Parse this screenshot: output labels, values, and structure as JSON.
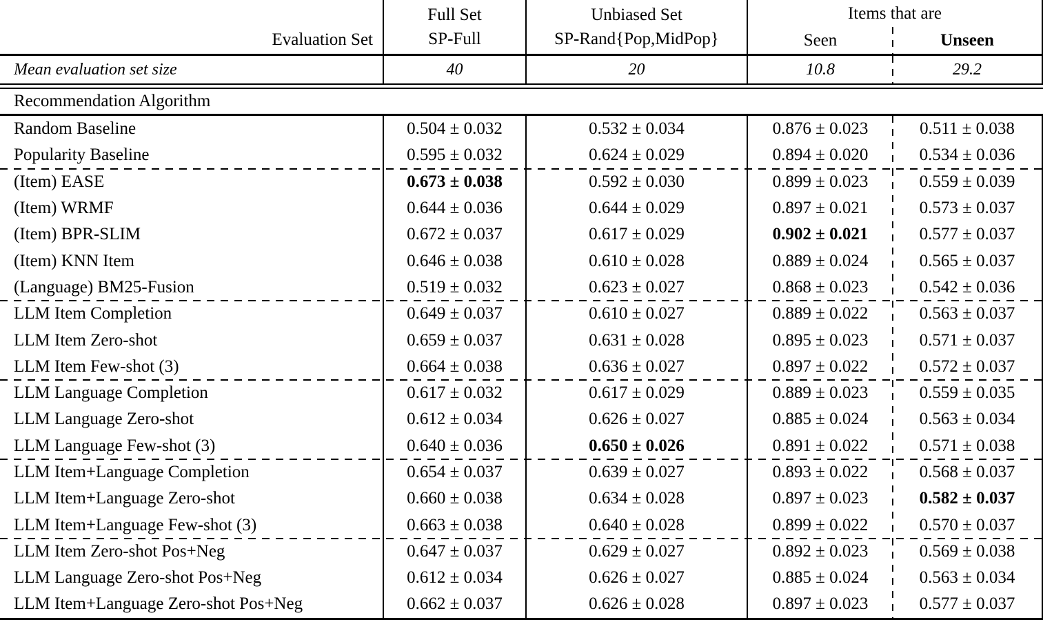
{
  "header": {
    "eval_set_label": "Evaluation Set",
    "full_set_line1": "Full Set",
    "full_set_line2": "SP-Full",
    "unbiased_line1": "Unbiased Set",
    "unbiased_line2": "SP-Rand{Pop,MidPop}",
    "items_group_label": "Items that are",
    "seen_label": "Seen",
    "unseen_label": "Unseen"
  },
  "mean_row": {
    "label": "Mean evaluation set size",
    "values": [
      "40",
      "20",
      "10.8",
      "29.2"
    ]
  },
  "section_label": "Recommendation Algorithm",
  "column_keys": [
    "full_set",
    "unbiased_set",
    "seen",
    "unseen"
  ],
  "rows": [
    {
      "label": "Random Baseline",
      "values": [
        "0.504 ± 0.032",
        "0.532 ± 0.034",
        "0.876 ± 0.023",
        "0.511 ± 0.038"
      ],
      "bold_col": null,
      "dashed_above": false
    },
    {
      "label": "Popularity Baseline",
      "values": [
        "0.595 ± 0.032",
        "0.624 ± 0.029",
        "0.894 ± 0.020",
        "0.534 ± 0.036"
      ],
      "bold_col": null,
      "dashed_above": false
    },
    {
      "label": "(Item) EASE",
      "values": [
        "0.673 ± 0.038",
        "0.592 ± 0.030",
        "0.899 ± 0.023",
        "0.559 ± 0.039"
      ],
      "bold_col": 0,
      "dashed_above": true
    },
    {
      "label": "(Item) WRMF",
      "values": [
        "0.644 ± 0.036",
        "0.644 ± 0.029",
        "0.897 ± 0.021",
        "0.573 ± 0.037"
      ],
      "bold_col": null,
      "dashed_above": false
    },
    {
      "label": "(Item) BPR-SLIM",
      "values": [
        "0.672 ± 0.037",
        "0.617 ± 0.029",
        "0.902 ± 0.021",
        "0.577 ± 0.037"
      ],
      "bold_col": 2,
      "dashed_above": false
    },
    {
      "label": "(Item) KNN Item",
      "values": [
        "0.646 ± 0.038",
        "0.610 ± 0.028",
        "0.889 ± 0.024",
        "0.565 ± 0.037"
      ],
      "bold_col": null,
      "dashed_above": false
    },
    {
      "label": "(Language) BM25-Fusion",
      "values": [
        "0.519 ± 0.032",
        "0.623 ± 0.027",
        "0.868 ± 0.023",
        "0.542 ± 0.036"
      ],
      "bold_col": null,
      "dashed_above": false
    },
    {
      "label": "LLM Item Completion",
      "values": [
        "0.649 ± 0.037",
        "0.610 ± 0.027",
        "0.889 ± 0.022",
        "0.563 ± 0.037"
      ],
      "bold_col": null,
      "dashed_above": true
    },
    {
      "label": "LLM Item Zero-shot",
      "values": [
        "0.659 ± 0.037",
        "0.631 ± 0.028",
        "0.895 ± 0.023",
        "0.571 ± 0.037"
      ],
      "bold_col": null,
      "dashed_above": false
    },
    {
      "label": "LLM Item Few-shot (3)",
      "values": [
        "0.664 ± 0.038",
        "0.636 ± 0.027",
        "0.897 ± 0.022",
        "0.572 ± 0.037"
      ],
      "bold_col": null,
      "dashed_above": false
    },
    {
      "label": "LLM Language Completion",
      "values": [
        "0.617 ± 0.032",
        "0.617 ± 0.029",
        "0.889 ± 0.023",
        "0.559 ± 0.035"
      ],
      "bold_col": null,
      "dashed_above": true
    },
    {
      "label": "LLM Language Zero-shot",
      "values": [
        "0.612 ± 0.034",
        "0.626 ± 0.027",
        "0.885 ± 0.024",
        "0.563 ± 0.034"
      ],
      "bold_col": null,
      "dashed_above": false
    },
    {
      "label": "LLM Language Few-shot (3)",
      "values": [
        "0.640 ± 0.036",
        "0.650 ± 0.026",
        "0.891 ± 0.022",
        "0.571 ± 0.038"
      ],
      "bold_col": 1,
      "dashed_above": false
    },
    {
      "label": "LLM Item+Language Completion",
      "values": [
        "0.654 ± 0.037",
        "0.639 ± 0.027",
        "0.893 ± 0.022",
        "0.568 ± 0.037"
      ],
      "bold_col": null,
      "dashed_above": true
    },
    {
      "label": "LLM Item+Language Zero-shot",
      "values": [
        "0.660 ± 0.038",
        "0.634 ± 0.028",
        "0.897 ± 0.023",
        "0.582 ± 0.037"
      ],
      "bold_col": 3,
      "dashed_above": false
    },
    {
      "label": "LLM Item+Language Few-shot (3)",
      "values": [
        "0.663 ± 0.038",
        "0.640 ± 0.028",
        "0.899 ± 0.022",
        "0.570 ± 0.037"
      ],
      "bold_col": null,
      "dashed_above": false
    },
    {
      "label": "LLM Item Zero-shot Pos+Neg",
      "values": [
        "0.647 ± 0.037",
        "0.629 ± 0.027",
        "0.892 ± 0.023",
        "0.569 ± 0.038"
      ],
      "bold_col": null,
      "dashed_above": true
    },
    {
      "label": "LLM Language Zero-shot Pos+Neg",
      "values": [
        "0.612 ± 0.034",
        "0.626 ± 0.027",
        "0.885 ± 0.024",
        "0.563 ± 0.034"
      ],
      "bold_col": null,
      "dashed_above": false
    },
    {
      "label": "LLM Item+Language Zero-shot Pos+Neg",
      "values": [
        "0.662 ± 0.037",
        "0.626 ± 0.028",
        "0.897 ± 0.023",
        "0.577 ± 0.037"
      ],
      "bold_col": null,
      "dashed_above": false
    }
  ]
}
